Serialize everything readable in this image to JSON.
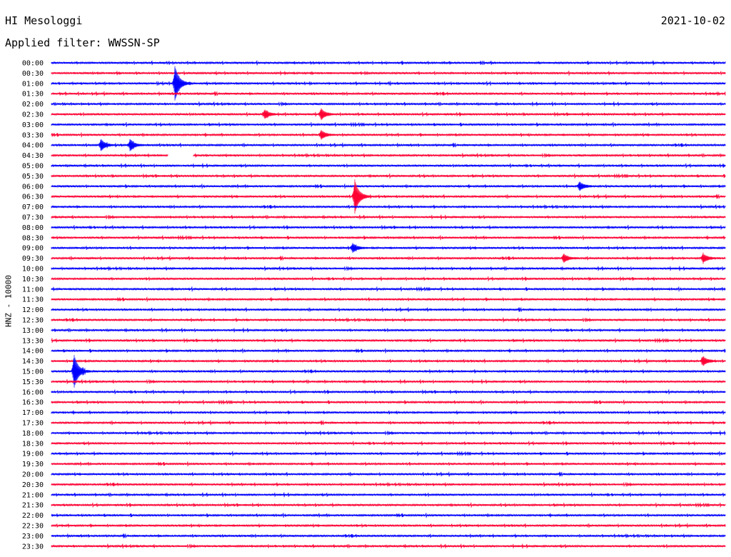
{
  "header": {
    "station": "HI Mesologgi",
    "filter_label": "Applied filter: WWSSN-SP",
    "date": "2021-10-02"
  },
  "y_axis_label": "HNZ - 10000",
  "colors": {
    "blue": "#0000ff",
    "red": "#ff0033"
  },
  "chart_data": {
    "type": "line",
    "title": "HI Mesologgi",
    "subtitle": "Applied filter: WWSSN-SP",
    "ylabel": "HNZ - 10000",
    "row_labels": [
      "00:00",
      "00:30",
      "01:00",
      "01:30",
      "02:00",
      "02:30",
      "03:00",
      "03:30",
      "04:00",
      "04:30",
      "05:00",
      "05:30",
      "06:00",
      "06:30",
      "07:00",
      "07:30",
      "08:00",
      "08:30",
      "09:00",
      "09:30",
      "10:00",
      "10:30",
      "11:00",
      "11:30",
      "12:00",
      "12:30",
      "13:00",
      "13:30",
      "14:00",
      "14:30",
      "15:00",
      "15:30",
      "16:00",
      "16:30",
      "17:00",
      "17:30",
      "18:00",
      "18:30",
      "19:00",
      "19:30",
      "20:00",
      "20:30",
      "21:00",
      "21:30",
      "22:00",
      "22:30",
      "23:00",
      "23:30"
    ],
    "row_colors": "alternating blue/red",
    "minutes_per_row": 30,
    "events": [
      {
        "row": "01:00",
        "minute": 5.5,
        "amplitude": "large",
        "color": "blue"
      },
      {
        "row": "02:30",
        "minute": 12.0,
        "amplitude": "medium",
        "color": "red"
      },
      {
        "row": "02:30",
        "minute": 9.5,
        "amplitude": "small",
        "color": "red"
      },
      {
        "row": "03:30",
        "minute": 12.0,
        "amplitude": "small",
        "color": "red"
      },
      {
        "row": "04:00",
        "minute": 2.2,
        "amplitude": "medium",
        "color": "blue"
      },
      {
        "row": "04:00",
        "minute": 3.5,
        "amplitude": "medium",
        "color": "blue"
      },
      {
        "row": "06:00",
        "minute": 23.5,
        "amplitude": "small",
        "color": "blue"
      },
      {
        "row": "06:30",
        "minute": 13.5,
        "amplitude": "large",
        "color": "red"
      },
      {
        "row": "09:00",
        "minute": 13.4,
        "amplitude": "small",
        "color": "blue"
      },
      {
        "row": "09:30",
        "minute": 22.8,
        "amplitude": "small",
        "color": "red"
      },
      {
        "row": "09:30",
        "minute": 29.0,
        "amplitude": "small",
        "color": "red"
      },
      {
        "row": "14:30",
        "minute": 29.0,
        "amplitude": "small",
        "color": "red"
      },
      {
        "row": "15:00",
        "minute": 1.0,
        "amplitude": "large",
        "color": "blue"
      }
    ],
    "data_gap": {
      "row": "04:30",
      "start_minute": 5.2,
      "end_minute": 6.3
    }
  }
}
